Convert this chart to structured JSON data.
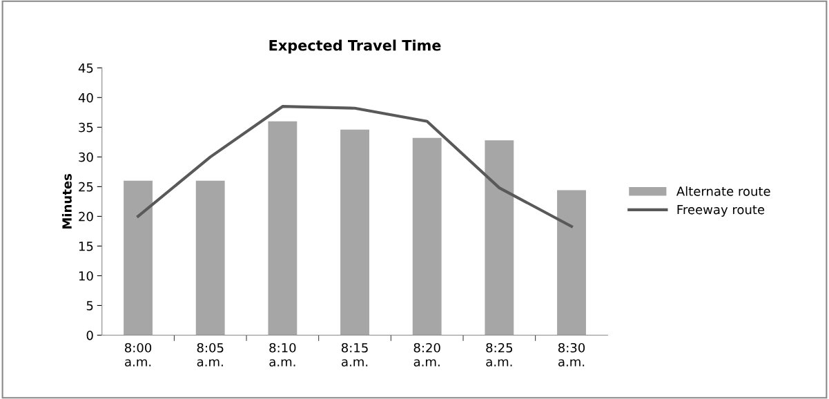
{
  "chart_data": {
    "type": "bar",
    "title": "Expected Travel Time",
    "ylabel": "Minutes",
    "categories": [
      "8:00\na.m.",
      "8:05\na.m.",
      "8:10\na.m.",
      "8:15\na.m.",
      "8:20\na.m.",
      "8:25\na.m.",
      "8:30\na.m."
    ],
    "series": [
      {
        "name": "Alternate route",
        "color": "#a6a6a6",
        "values": [
          26,
          26,
          36,
          34.6,
          33.2,
          32.8,
          24.4
        ]
      },
      {
        "name": "Freeway route",
        "type": "line",
        "color": "#595959",
        "values": [
          20,
          30,
          38.5,
          38.2,
          36,
          24.8,
          18.3
        ]
      }
    ],
    "ylim": [
      0,
      45
    ],
    "yticks": [
      0,
      5,
      10,
      15,
      20,
      25,
      30,
      35,
      40,
      45
    ],
    "grid": false,
    "legend": "right",
    "marker": "none",
    "line_style": "solid"
  }
}
